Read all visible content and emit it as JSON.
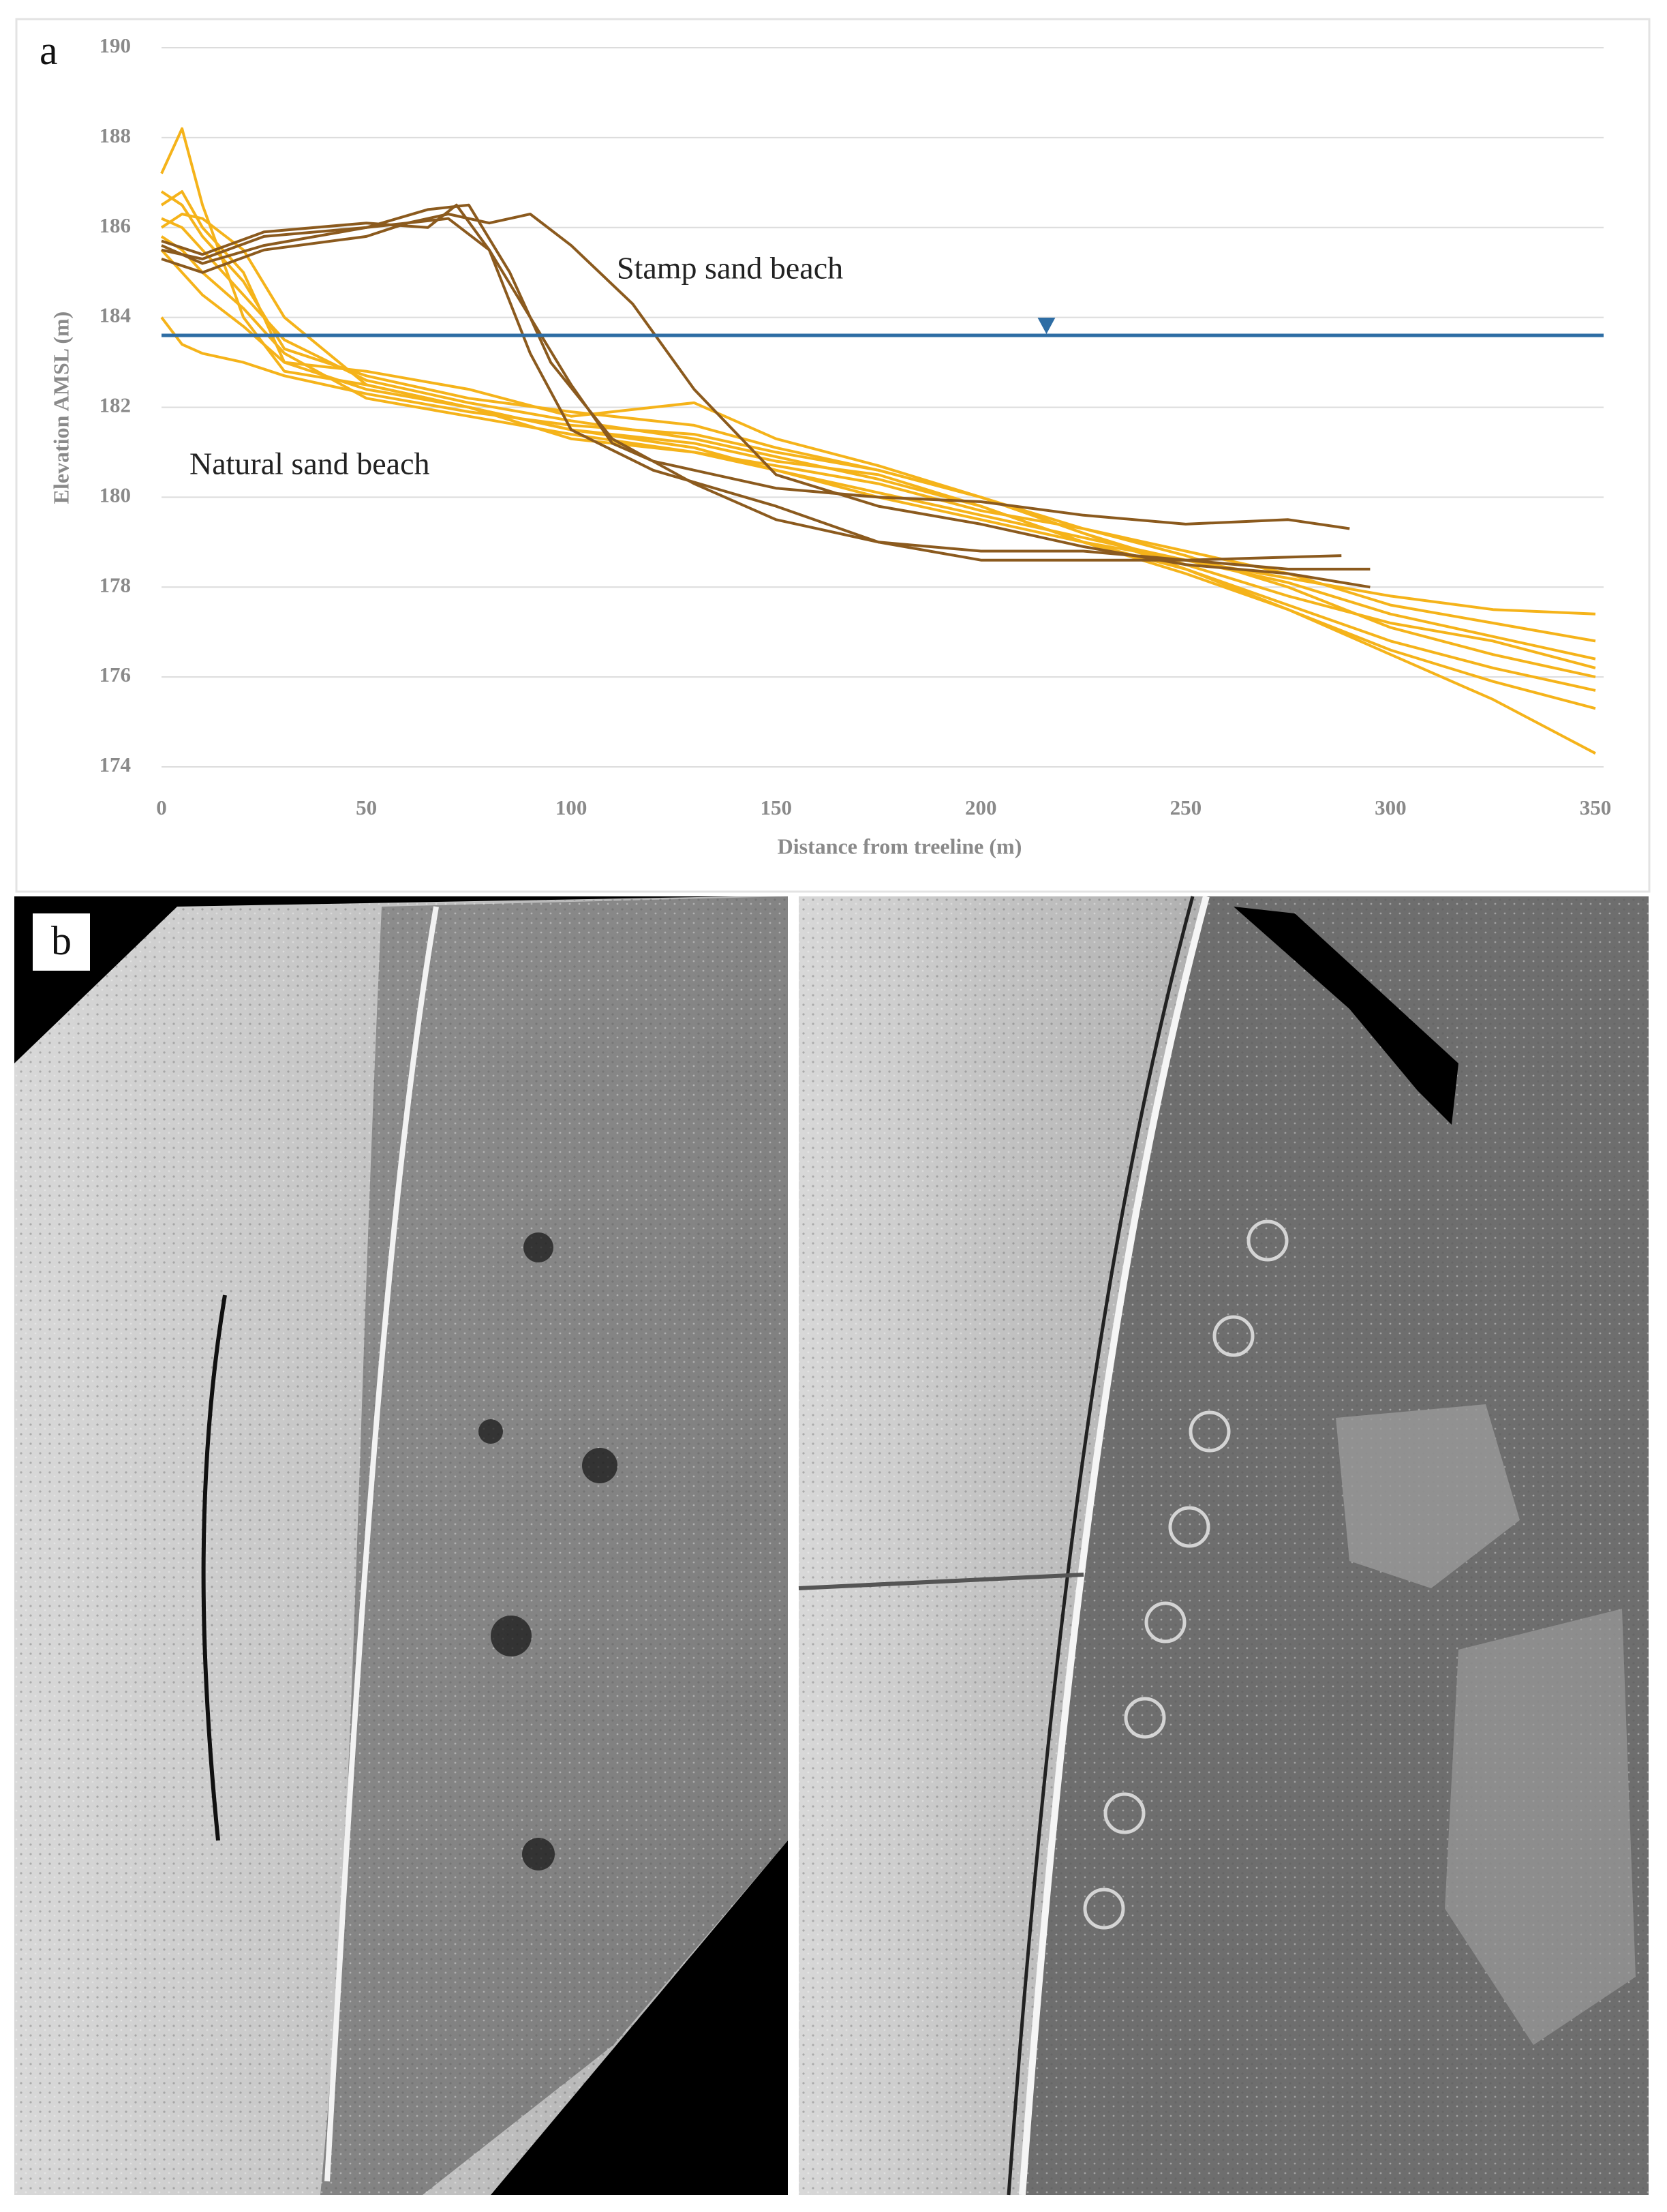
{
  "chart_data": {
    "type": "line",
    "panel_label": "a",
    "x_label": "Distance from treeline (m)",
    "y_label": "Elevation AMSL (m)",
    "annotations": [
      "Stamp sand beach",
      "Natural sand beach"
    ],
    "xlim": [
      0,
      352
    ],
    "ylim": [
      174,
      190
    ],
    "xticks": [
      0,
      50,
      100,
      150,
      200,
      250,
      300,
      350
    ],
    "yticks": [
      174,
      176,
      178,
      180,
      182,
      184,
      186,
      188,
      190
    ],
    "grid": true,
    "water_level": 183.6,
    "water_marker_x": 216,
    "water_color": "#2e6da4",
    "series": [
      {
        "color": "#f5b31a",
        "x": [
          0,
          5,
          10,
          20,
          30,
          50,
          75,
          100,
          130,
          150,
          175,
          200,
          225,
          250,
          275,
          300,
          325,
          350
        ],
        "values": [
          187.2,
          188.2,
          186.5,
          184,
          182.8,
          182.5,
          182.0,
          181.3,
          181.0,
          180.6,
          180.0,
          179.5,
          179.0,
          178.3,
          177.5,
          176.5,
          175.5,
          174.3
        ]
      },
      {
        "color": "#f5b31a",
        "x": [
          0,
          5,
          10,
          20,
          30,
          50,
          75,
          100,
          130,
          150,
          175,
          200,
          225,
          250,
          275,
          300,
          325,
          350
        ],
        "values": [
          186.5,
          186.8,
          186,
          185,
          183,
          182.8,
          182.4,
          181.8,
          182.1,
          181.3,
          180.7,
          180.0,
          179.2,
          178.5,
          177.8,
          177.2,
          176.8,
          176.2
        ]
      },
      {
        "color": "#f5b31a",
        "x": [
          0,
          5,
          10,
          20,
          30,
          50,
          75,
          100,
          130,
          150,
          175,
          200,
          225,
          250,
          275,
          300,
          325,
          350
        ],
        "values": [
          186,
          186.3,
          186.2,
          185.5,
          184,
          182.5,
          182,
          181.5,
          181.2,
          180.8,
          180.5,
          179.8,
          179.0,
          178.6,
          178.2,
          177.8,
          177.5,
          177.4
        ]
      },
      {
        "color": "#f5b31a",
        "x": [
          0,
          5,
          10,
          20,
          30,
          50,
          75,
          100,
          130,
          150,
          175,
          200,
          225,
          250,
          275,
          300,
          325,
          350
        ],
        "values": [
          185.8,
          185.5,
          185,
          184.2,
          183.2,
          182.2,
          181.8,
          181.4,
          181,
          180.7,
          180.3,
          179.7,
          179.3,
          178.8,
          178.3,
          177.6,
          177.2,
          176.8
        ]
      },
      {
        "color": "#f5b31a",
        "x": [
          0,
          5,
          10,
          20,
          30,
          50,
          75,
          100,
          130,
          150,
          175,
          200,
          225,
          250,
          275,
          300,
          325,
          350
        ],
        "values": [
          184,
          183.4,
          183.2,
          183,
          182.7,
          182.3,
          181.9,
          181.6,
          181.4,
          181,
          180.6,
          180,
          179.3,
          178.7,
          178,
          177.1,
          176.5,
          176.0
        ]
      },
      {
        "color": "#f5b31a",
        "x": [
          0,
          5,
          10,
          20,
          30,
          50,
          75,
          100,
          130,
          150,
          175,
          200,
          225,
          250,
          275,
          300,
          325,
          350
        ],
        "values": [
          186.2,
          186,
          185.5,
          184.5,
          183.5,
          182.6,
          182.1,
          181.7,
          181.3,
          180.9,
          180.4,
          179.8,
          179.0,
          178.4,
          177.5,
          176.6,
          175.9,
          175.3
        ]
      },
      {
        "color": "#f5b31a",
        "x": [
          0,
          5,
          10,
          20,
          30,
          50,
          75,
          100,
          130,
          150,
          175,
          200,
          225,
          250,
          275,
          300,
          325,
          350
        ],
        "values": [
          185.5,
          185,
          184.5,
          183.8,
          183,
          182.4,
          182,
          181.5,
          181.1,
          180.6,
          180.1,
          179.6,
          179.1,
          178.6,
          178.1,
          177.4,
          176.9,
          176.4
        ]
      },
      {
        "color": "#f5b31a",
        "x": [
          0,
          5,
          10,
          20,
          30,
          50,
          75,
          100,
          130,
          150,
          175,
          200,
          225,
          250,
          275,
          300,
          325,
          350
        ],
        "values": [
          186.8,
          186.5,
          185.8,
          184.8,
          183.3,
          182.7,
          182.2,
          181.9,
          181.6,
          181.1,
          180.6,
          180.0,
          179.2,
          178.4,
          177.6,
          176.8,
          176.2,
          175.7
        ]
      },
      {
        "color": "#8b5a1e",
        "x": [
          0,
          10,
          25,
          50,
          70,
          80,
          90,
          100,
          110,
          120,
          150,
          175,
          200,
          225,
          250,
          275,
          290
        ],
        "values": [
          185.5,
          185.3,
          185.8,
          186,
          186.2,
          185.5,
          184,
          182.5,
          181.2,
          180.8,
          180.2,
          180.0,
          179.9,
          179.6,
          179.4,
          179.5,
          179.3
        ]
      },
      {
        "color": "#8b5a1e",
        "x": [
          0,
          10,
          25,
          50,
          65,
          75,
          85,
          95,
          110,
          130,
          150,
          175,
          200,
          225,
          250,
          275,
          295
        ],
        "values": [
          185.6,
          185.2,
          185.6,
          186,
          186.4,
          186.5,
          185,
          183,
          181.3,
          180.3,
          179.5,
          179,
          178.8,
          178.8,
          178.6,
          178.4,
          178.4
        ]
      },
      {
        "color": "#8b5a1e",
        "x": [
          0,
          10,
          25,
          50,
          60,
          70,
          80,
          90,
          100,
          115,
          130,
          150,
          175,
          200,
          225,
          250,
          275,
          295
        ],
        "values": [
          185.3,
          185,
          185.5,
          185.8,
          186.1,
          186.3,
          186.1,
          186.3,
          185.6,
          184.3,
          182.4,
          180.5,
          179.8,
          179.4,
          178.9,
          178.5,
          178.3,
          178.0
        ]
      },
      {
        "color": "#8b5a1e",
        "x": [
          0,
          10,
          25,
          50,
          65,
          72,
          80,
          90,
          100,
          120,
          150,
          175,
          200,
          225,
          250,
          288
        ],
        "values": [
          185.7,
          185.4,
          185.9,
          186.1,
          186.0,
          186.5,
          185.5,
          183.2,
          181.5,
          180.6,
          179.8,
          179,
          178.6,
          178.6,
          178.6,
          178.7
        ]
      }
    ]
  },
  "panel_b_label": "b"
}
